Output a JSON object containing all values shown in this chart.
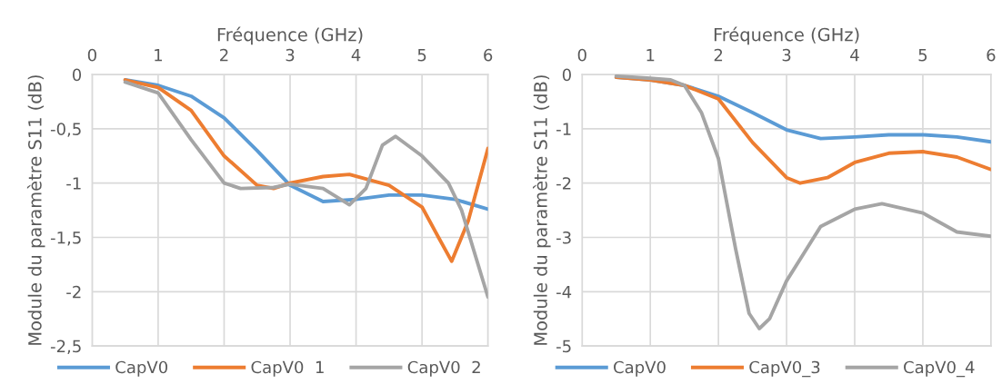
{
  "chart_data": [
    {
      "type": "line",
      "xlabel": "Fréquence (GHz)",
      "ylabel": "Module du paramètre S11 (dB)",
      "xlim": [
        0,
        6
      ],
      "xticks": [
        0,
        1,
        2,
        3,
        4,
        5,
        6
      ],
      "ylim": [
        -2.5,
        0
      ],
      "yticks": [
        {
          "value": -2.5,
          "label": "-2,5"
        },
        {
          "value": -2,
          "label": "-2"
        },
        {
          "value": -1.5,
          "label": "-1,5"
        },
        {
          "value": -1,
          "label": "-1"
        },
        {
          "value": -0.5,
          "label": "-0,5"
        },
        {
          "value": 0,
          "label": "0"
        }
      ],
      "grid": true,
      "legend": "bottom",
      "line_style": "solid",
      "marker": "none",
      "series": [
        {
          "name": "CapV0",
          "color": "#5b9bd5",
          "x": [
            0.5,
            1,
            1.5,
            2,
            2.5,
            3,
            3.5,
            4,
            4.5,
            5,
            5.5,
            6
          ],
          "values": [
            -0.05,
            -0.1,
            -0.2,
            -0.4,
            -0.7,
            -1.02,
            -1.17,
            -1.15,
            -1.11,
            -1.11,
            -1.15,
            -1.24
          ]
        },
        {
          "name": "CapV0  1",
          "color": "#ed7d31",
          "x": [
            0.5,
            1,
            1.5,
            2,
            2.5,
            2.75,
            3,
            3.5,
            3.9,
            4.5,
            5,
            5.25,
            5.45,
            5.7,
            6
          ],
          "values": [
            -0.05,
            -0.12,
            -0.33,
            -0.75,
            -1.02,
            -1.05,
            -1.0,
            -0.94,
            -0.92,
            -1.02,
            -1.22,
            -1.5,
            -1.72,
            -1.35,
            -0.68
          ]
        },
        {
          "name": "CapV0  2",
          "color": "#a5a5a5",
          "x": [
            0.5,
            1,
            1.5,
            2,
            2.25,
            2.75,
            3,
            3.5,
            3.9,
            4.15,
            4.4,
            4.6,
            5,
            5.4,
            5.6,
            6
          ],
          "values": [
            -0.07,
            -0.17,
            -0.6,
            -1.0,
            -1.05,
            -1.04,
            -1.01,
            -1.05,
            -1.2,
            -1.05,
            -0.65,
            -0.57,
            -0.75,
            -1.0,
            -1.25,
            -2.05
          ]
        }
      ]
    },
    {
      "type": "line",
      "xlabel": "Fréquence (GHz)",
      "ylabel": "Module du paramètre S11 (dB)",
      "xlim": [
        0,
        6
      ],
      "xticks": [
        0,
        1,
        2,
        3,
        4,
        5,
        6
      ],
      "ylim": [
        -5,
        0
      ],
      "yticks": [
        -5,
        -4,
        -3,
        -2,
        -1,
        0
      ],
      "grid": true,
      "legend": "bottom",
      "line_style": "solid",
      "marker": "none",
      "series": [
        {
          "name": "CapV0",
          "color": "#5b9bd5",
          "x": [
            0.5,
            1,
            1.5,
            2,
            2.5,
            3,
            3.5,
            4,
            4.5,
            5,
            5.5,
            6
          ],
          "values": [
            -0.05,
            -0.1,
            -0.2,
            -0.4,
            -0.7,
            -1.02,
            -1.18,
            -1.15,
            -1.11,
            -1.11,
            -1.15,
            -1.24
          ]
        },
        {
          "name": "CapV0_3",
          "color": "#ed7d31",
          "x": [
            0.5,
            1,
            1.5,
            2,
            2.5,
            3,
            3.2,
            3.6,
            4,
            4.5,
            5,
            5.5,
            6
          ],
          "values": [
            -0.05,
            -0.1,
            -0.2,
            -0.45,
            -1.25,
            -1.9,
            -2.0,
            -1.9,
            -1.62,
            -1.45,
            -1.42,
            -1.52,
            -1.75
          ]
        },
        {
          "name": "CapV0_4",
          "color": "#a5a5a5",
          "x": [
            0.5,
            1,
            1.3,
            1.5,
            1.75,
            2,
            2.25,
            2.45,
            2.6,
            2.75,
            3,
            3.25,
            3.5,
            4,
            4.4,
            5,
            5.5,
            6
          ],
          "values": [
            -0.03,
            -0.07,
            -0.1,
            -0.2,
            -0.7,
            -1.55,
            -3.2,
            -4.4,
            -4.68,
            -4.5,
            -3.8,
            -3.3,
            -2.8,
            -2.48,
            -2.38,
            -2.55,
            -2.9,
            -2.98
          ]
        }
      ]
    }
  ]
}
